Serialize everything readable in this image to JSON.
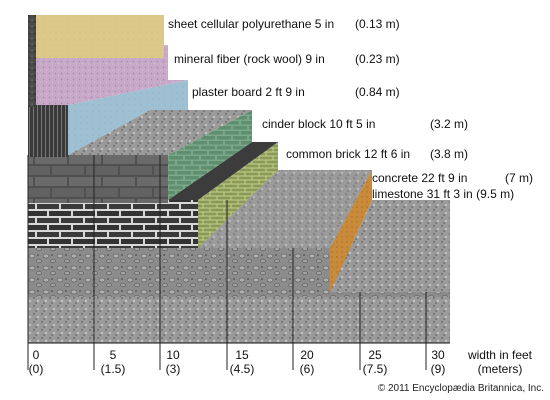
{
  "materials": [
    {
      "name": "sheet cellular polyurethane",
      "feet": "5 in",
      "meters": "(0.13 m)",
      "color": "#dcc98a"
    },
    {
      "name": "mineral fiber (rock wool)",
      "feet": "9 in",
      "meters": "(0.23 m)",
      "color": "#c8a8c8"
    },
    {
      "name": "plaster board",
      "feet": "2 ft 9 in",
      "meters": "(0.84 m)",
      "color": "#9fc0d2"
    },
    {
      "name": "cinder block",
      "feet": "10 ft 5 in",
      "meters": "(3.2 m)",
      "color": "#5f8f6e"
    },
    {
      "name": "common brick",
      "feet": "12 ft 6 in",
      "meters": "(3.8 m)",
      "color": "#8f9f55"
    },
    {
      "name": "concrete",
      "feet": "22 ft 9 in",
      "meters": "(7 m)",
      "color": "#c98a3a"
    },
    {
      "name": "limestone",
      "feet": "31 ft 3 in",
      "meters": "(9.5 m)",
      "color": "#8a8a8a"
    }
  ],
  "axis": {
    "title_line1": "width in feet",
    "title_line2": "(meters)",
    "ticks": [
      {
        "feet": "0",
        "meters": "(0)"
      },
      {
        "feet": "5",
        "meters": "(1.5)"
      },
      {
        "feet": "10",
        "meters": "(3)"
      },
      {
        "feet": "15",
        "meters": "(4.5)"
      },
      {
        "feet": "20",
        "meters": "(6)"
      },
      {
        "feet": "25",
        "meters": "(7.5)"
      },
      {
        "feet": "30",
        "meters": "(9)"
      }
    ]
  },
  "copyright": "© 2011 Encyclopædia Britannica, Inc."
}
